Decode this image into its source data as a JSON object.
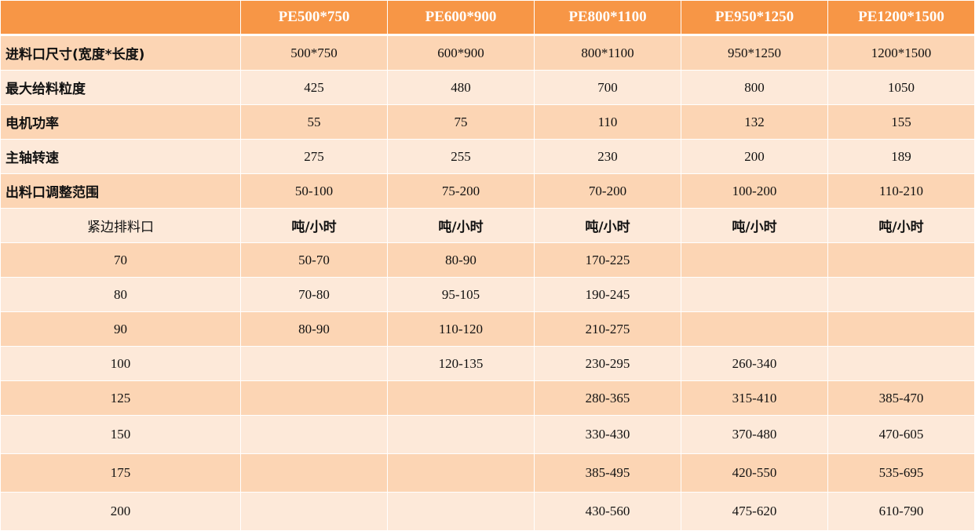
{
  "colors": {
    "header": "#F79646",
    "row_dark": "#FCD5B4",
    "row_light": "#FDE9D9"
  },
  "headers": [
    "",
    "PE500*750",
    "PE600*900",
    "PE800*1100",
    "PE950*1250",
    "PE1200*1500"
  ],
  "spec_rows": [
    {
      "label": "进料口尺寸(宽度*长度)",
      "values": [
        "500*750",
        "600*900",
        "800*1100",
        "950*1250",
        "1200*1500"
      ]
    },
    {
      "label": "最大给料粒度",
      "values": [
        "425",
        "480",
        "700",
        "800",
        "1050"
      ]
    },
    {
      "label": "电机功率",
      "values": [
        "55",
        "75",
        "110",
        "132",
        "155"
      ]
    },
    {
      "label": "主轴转速",
      "values": [
        "275",
        "255",
        "230",
        "200",
        "189"
      ]
    },
    {
      "label": "出料口调整范围",
      "values": [
        "50-100",
        "75-200",
        "70-200",
        "100-200",
        "110-210"
      ]
    }
  ],
  "capacity_header": {
    "label": "紧边排料口",
    "units": [
      "吨/小时",
      "吨/小时",
      "吨/小时",
      "吨/小时",
      "吨/小时"
    ]
  },
  "capacity_rows": [
    {
      "label": "70",
      "values": [
        "50-70",
        "80-90",
        "170-225",
        "",
        ""
      ]
    },
    {
      "label": "80",
      "values": [
        "70-80",
        "95-105",
        "190-245",
        "",
        ""
      ]
    },
    {
      "label": "90",
      "values": [
        "80-90",
        "110-120",
        "210-275",
        "",
        ""
      ]
    },
    {
      "label": "100",
      "values": [
        "",
        "120-135",
        "230-295",
        "260-340",
        ""
      ]
    },
    {
      "label": "125",
      "values": [
        "",
        "",
        "280-365",
        "315-410",
        "385-470"
      ]
    },
    {
      "label": "150",
      "values": [
        "",
        "",
        "330-430",
        "370-480",
        "470-605"
      ]
    },
    {
      "label": "175",
      "values": [
        "",
        "",
        "385-495",
        "420-550",
        "535-695"
      ]
    },
    {
      "label": "200",
      "values": [
        "",
        "",
        "430-560",
        "475-620",
        "610-790"
      ]
    }
  ]
}
